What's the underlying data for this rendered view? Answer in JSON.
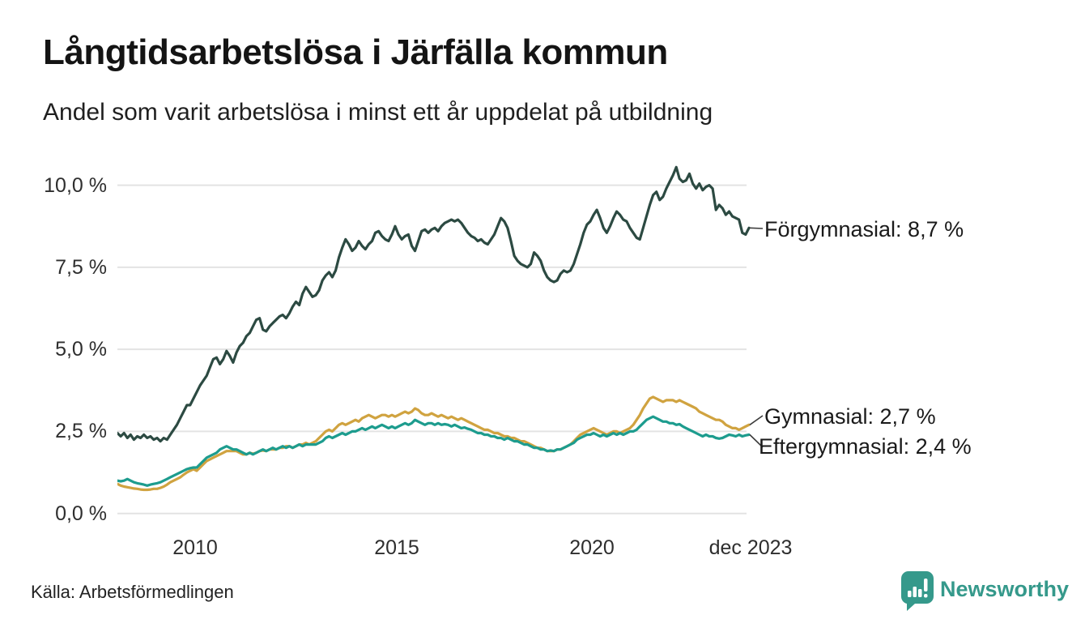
{
  "header": {
    "title": "Långtidsarbetslösa i Järfälla kommun",
    "subtitle": "Andel som varit arbetslösa i minst ett år uppdelat på utbildning"
  },
  "footer": {
    "source": "Källa: Arbetsförmedlingen",
    "brand": "Newsworthy",
    "brand_color": "#35998b"
  },
  "colors": {
    "background": "#ffffff",
    "gridline": "#e3e3e3",
    "text": "#1a1a1a",
    "connector": "#3c3c3c"
  },
  "chart_data": {
    "type": "line",
    "title": "Långtidsarbetslösa i Järfälla kommun",
    "subtitle": "Andel som varit arbetslösa i minst ett år uppdelat på utbildning",
    "x_unit": "month",
    "x_start": "2008-01",
    "x_end": "2023-12",
    "ylim": [
      0,
      10.6
    ],
    "grid": "horizontal",
    "legend_position": "end-of-line-labels",
    "yticks": [
      "0,0 %",
      "2,5 %",
      "5,0 %",
      "7,5 %",
      "10,0 %"
    ],
    "ytick_values": [
      0,
      2.5,
      5,
      7.5,
      10
    ],
    "xticks": [
      {
        "label": "2010",
        "month_index": 24
      },
      {
        "label": "2015",
        "month_index": 84
      },
      {
        "label": "2020",
        "month_index": 144
      },
      {
        "label": "dec 2023",
        "month_index": 191
      }
    ],
    "series": [
      {
        "name": "Förgymnasial",
        "end_label": "Förgymnasial: 8,7 %",
        "end_value": 8.7,
        "color": "#2c4a42",
        "values": [
          2.45,
          2.35,
          2.45,
          2.3,
          2.4,
          2.25,
          2.35,
          2.3,
          2.4,
          2.3,
          2.35,
          2.25,
          2.3,
          2.2,
          2.3,
          2.25,
          2.4,
          2.55,
          2.7,
          2.9,
          3.1,
          3.3,
          3.3,
          3.5,
          3.7,
          3.9,
          4.05,
          4.2,
          4.45,
          4.7,
          4.75,
          4.55,
          4.7,
          4.95,
          4.8,
          4.6,
          4.9,
          5.1,
          5.2,
          5.4,
          5.5,
          5.7,
          5.9,
          5.95,
          5.6,
          5.55,
          5.7,
          5.8,
          5.9,
          6.0,
          6.05,
          5.95,
          6.1,
          6.3,
          6.45,
          6.35,
          6.7,
          6.9,
          6.75,
          6.6,
          6.65,
          6.8,
          7.1,
          7.25,
          7.35,
          7.2,
          7.4,
          7.8,
          8.1,
          8.35,
          8.2,
          8.0,
          8.1,
          8.3,
          8.15,
          8.05,
          8.2,
          8.3,
          8.55,
          8.6,
          8.45,
          8.35,
          8.3,
          8.5,
          8.75,
          8.5,
          8.35,
          8.45,
          8.5,
          8.15,
          8.0,
          8.3,
          8.6,
          8.65,
          8.55,
          8.65,
          8.7,
          8.6,
          8.75,
          8.85,
          8.9,
          8.95,
          8.9,
          8.95,
          8.85,
          8.7,
          8.55,
          8.45,
          8.4,
          8.3,
          8.35,
          8.25,
          8.2,
          8.35,
          8.5,
          8.75,
          9.0,
          8.9,
          8.7,
          8.3,
          7.85,
          7.7,
          7.6,
          7.55,
          7.5,
          7.6,
          7.95,
          7.85,
          7.7,
          7.4,
          7.2,
          7.1,
          7.05,
          7.1,
          7.3,
          7.4,
          7.35,
          7.4,
          7.6,
          7.9,
          8.2,
          8.55,
          8.8,
          8.9,
          9.1,
          9.25,
          9.0,
          8.7,
          8.55,
          8.75,
          9.0,
          9.2,
          9.1,
          8.95,
          8.9,
          8.7,
          8.55,
          8.4,
          8.35,
          8.7,
          9.05,
          9.4,
          9.7,
          9.8,
          9.55,
          9.65,
          9.9,
          10.1,
          10.3,
          10.55,
          10.2,
          10.1,
          10.15,
          10.35,
          10.05,
          9.9,
          10.05,
          9.85,
          9.95,
          10.0,
          9.9,
          9.25,
          9.4,
          9.3,
          9.1,
          9.2,
          9.05,
          9.0,
          8.95,
          8.55,
          8.5,
          8.7
        ]
      },
      {
        "name": "Gymnasial",
        "end_label": "Gymnasial: 2,7 %",
        "end_value": 2.7,
        "color": "#d0a340",
        "values": [
          0.9,
          0.85,
          0.82,
          0.8,
          0.78,
          0.76,
          0.75,
          0.73,
          0.72,
          0.72,
          0.73,
          0.75,
          0.75,
          0.78,
          0.82,
          0.88,
          0.95,
          1.0,
          1.05,
          1.1,
          1.18,
          1.25,
          1.3,
          1.35,
          1.3,
          1.4,
          1.5,
          1.6,
          1.65,
          1.7,
          1.75,
          1.8,
          1.85,
          1.9,
          1.9,
          1.9,
          1.9,
          1.85,
          1.8,
          1.8,
          1.85,
          1.82,
          1.85,
          1.9,
          1.92,
          1.9,
          1.95,
          1.95,
          1.95,
          2.0,
          2.0,
          2.05,
          2.05,
          2.0,
          2.05,
          2.1,
          2.1,
          2.15,
          2.1,
          2.15,
          2.2,
          2.3,
          2.4,
          2.5,
          2.55,
          2.5,
          2.6,
          2.7,
          2.75,
          2.7,
          2.75,
          2.8,
          2.85,
          2.8,
          2.9,
          2.95,
          3.0,
          2.95,
          2.9,
          2.95,
          3.0,
          3.0,
          2.95,
          3.0,
          2.95,
          3.0,
          3.05,
          3.1,
          3.05,
          3.1,
          3.2,
          3.15,
          3.05,
          3.0,
          3.0,
          3.05,
          3.0,
          2.95,
          3.0,
          2.95,
          2.9,
          2.95,
          2.9,
          2.85,
          2.9,
          2.85,
          2.8,
          2.75,
          2.7,
          2.65,
          2.6,
          2.55,
          2.55,
          2.5,
          2.45,
          2.45,
          2.4,
          2.35,
          2.35,
          2.3,
          2.3,
          2.25,
          2.2,
          2.2,
          2.15,
          2.1,
          2.05,
          2.0,
          2.0,
          1.95,
          1.9,
          1.9,
          1.9,
          1.95,
          1.95,
          2.0,
          2.05,
          2.1,
          2.2,
          2.3,
          2.4,
          2.45,
          2.5,
          2.55,
          2.6,
          2.55,
          2.5,
          2.45,
          2.4,
          2.45,
          2.5,
          2.5,
          2.45,
          2.5,
          2.55,
          2.6,
          2.7,
          2.85,
          3.0,
          3.2,
          3.35,
          3.5,
          3.55,
          3.5,
          3.45,
          3.4,
          3.45,
          3.45,
          3.45,
          3.4,
          3.45,
          3.4,
          3.35,
          3.3,
          3.25,
          3.2,
          3.1,
          3.05,
          3.0,
          2.95,
          2.9,
          2.85,
          2.85,
          2.8,
          2.7,
          2.65,
          2.6,
          2.6,
          2.55,
          2.6,
          2.65,
          2.7
        ]
      },
      {
        "name": "Eftergymnasial",
        "end_label": "Eftergymnasial: 2,4 %",
        "end_value": 2.4,
        "color": "#1d9c8e",
        "values": [
          1.0,
          0.98,
          1.0,
          1.05,
          1.0,
          0.95,
          0.92,
          0.9,
          0.88,
          0.85,
          0.88,
          0.9,
          0.92,
          0.95,
          1.0,
          1.05,
          1.1,
          1.15,
          1.2,
          1.25,
          1.3,
          1.35,
          1.38,
          1.4,
          1.4,
          1.5,
          1.6,
          1.7,
          1.75,
          1.8,
          1.85,
          1.95,
          2.0,
          2.05,
          2.0,
          1.95,
          1.95,
          1.9,
          1.85,
          1.8,
          1.85,
          1.8,
          1.85,
          1.9,
          1.95,
          1.9,
          1.95,
          2.0,
          1.95,
          2.0,
          2.05,
          2.0,
          2.05,
          2.0,
          2.05,
          2.1,
          2.05,
          2.1,
          2.1,
          2.1,
          2.1,
          2.15,
          2.2,
          2.3,
          2.35,
          2.3,
          2.35,
          2.4,
          2.45,
          2.4,
          2.45,
          2.5,
          2.5,
          2.55,
          2.6,
          2.55,
          2.6,
          2.65,
          2.6,
          2.65,
          2.7,
          2.65,
          2.6,
          2.65,
          2.6,
          2.65,
          2.7,
          2.75,
          2.7,
          2.75,
          2.85,
          2.8,
          2.75,
          2.7,
          2.75,
          2.75,
          2.7,
          2.75,
          2.7,
          2.72,
          2.7,
          2.65,
          2.7,
          2.65,
          2.6,
          2.62,
          2.58,
          2.55,
          2.5,
          2.45,
          2.45,
          2.4,
          2.4,
          2.35,
          2.35,
          2.3,
          2.3,
          2.25,
          2.3,
          2.25,
          2.2,
          2.2,
          2.15,
          2.1,
          2.1,
          2.05,
          2.0,
          2.0,
          1.95,
          1.95,
          1.9,
          1.92,
          1.9,
          1.95,
          1.95,
          2.0,
          2.05,
          2.1,
          2.15,
          2.25,
          2.3,
          2.35,
          2.4,
          2.4,
          2.45,
          2.4,
          2.35,
          2.4,
          2.35,
          2.4,
          2.45,
          2.4,
          2.45,
          2.4,
          2.45,
          2.5,
          2.5,
          2.55,
          2.65,
          2.75,
          2.85,
          2.9,
          2.95,
          2.9,
          2.85,
          2.8,
          2.8,
          2.75,
          2.75,
          2.7,
          2.72,
          2.65,
          2.6,
          2.55,
          2.5,
          2.45,
          2.4,
          2.35,
          2.4,
          2.35,
          2.35,
          2.3,
          2.28,
          2.3,
          2.35,
          2.4,
          2.38,
          2.35,
          2.4,
          2.35,
          2.38,
          2.4
        ]
      }
    ]
  }
}
